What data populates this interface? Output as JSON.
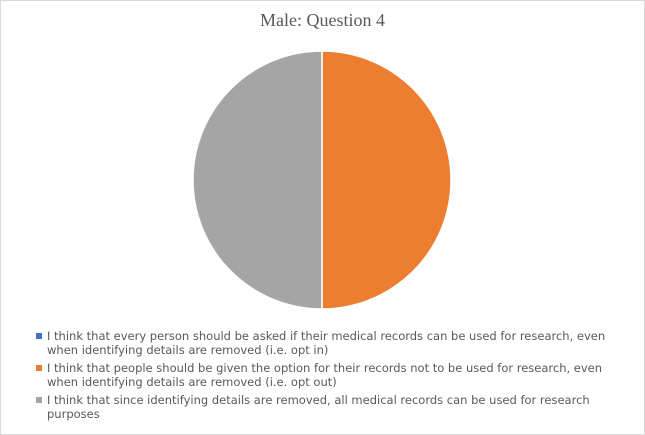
{
  "chart_data": {
    "type": "pie",
    "title": "Male: Question 4",
    "legend_position": "bottom",
    "slices": [
      {
        "label": "I think that every person should be asked if their medical records can be used for research, even when identifying details are removed (i.e. opt in)",
        "value": 0,
        "color": "#4472c4"
      },
      {
        "label": "I think that people should be given the option for their records not to be used for research, even when identifying details are removed (i.e. opt out)",
        "value": 50,
        "color": "#ed7d31"
      },
      {
        "label": "I think that since identifying details are removed, all medical records can be used for research purposes",
        "value": 50,
        "color": "#a5a5a5"
      }
    ]
  }
}
